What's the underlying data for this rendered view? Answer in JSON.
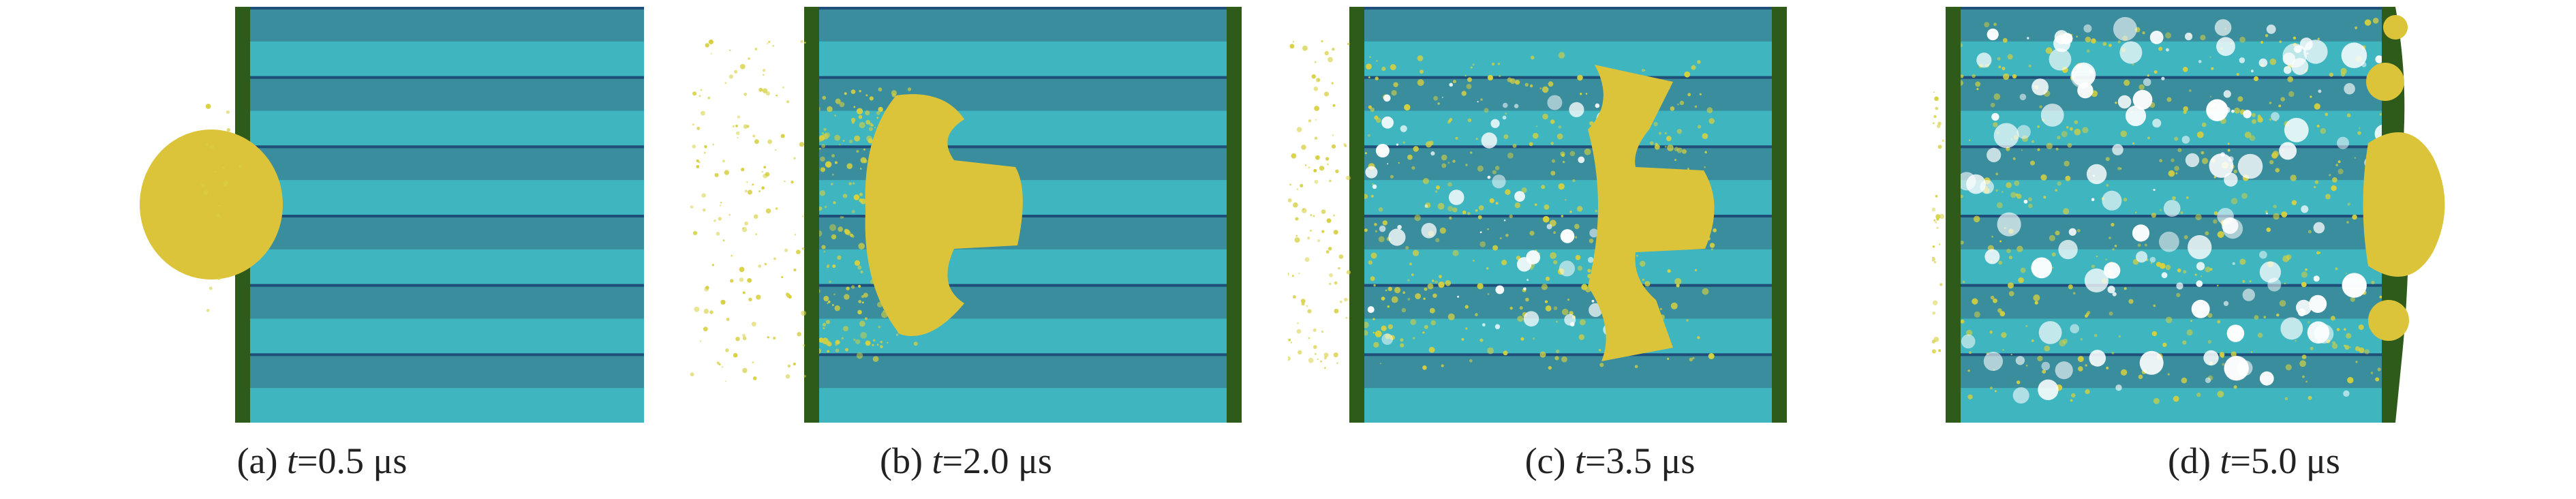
{
  "colors": {
    "stripe_light": "#3fb5bf",
    "stripe_dark": "#3a8d9c",
    "stripe_line": "#1f4e78",
    "plate": "#2f5b1a",
    "projectile": "#dcc43a",
    "debris": "#d6d040",
    "fragment_white": "#ffffff"
  },
  "panels": [
    {
      "id": "a",
      "prefix": "(a) ",
      "var": "t",
      "rest": "=0.5 μs",
      "stage": "contact"
    },
    {
      "id": "b",
      "prefix": "(b) ",
      "var": "t",
      "rest": "=2.0 μs",
      "stage": "penetration"
    },
    {
      "id": "c",
      "prefix": "(c) ",
      "var": "t",
      "rest": "=3.5 μs",
      "stage": "deep-penetration"
    },
    {
      "id": "d",
      "prefix": "(d) ",
      "var": "t",
      "rest": "=5.0 μs",
      "stage": "breakthrough"
    }
  ]
}
